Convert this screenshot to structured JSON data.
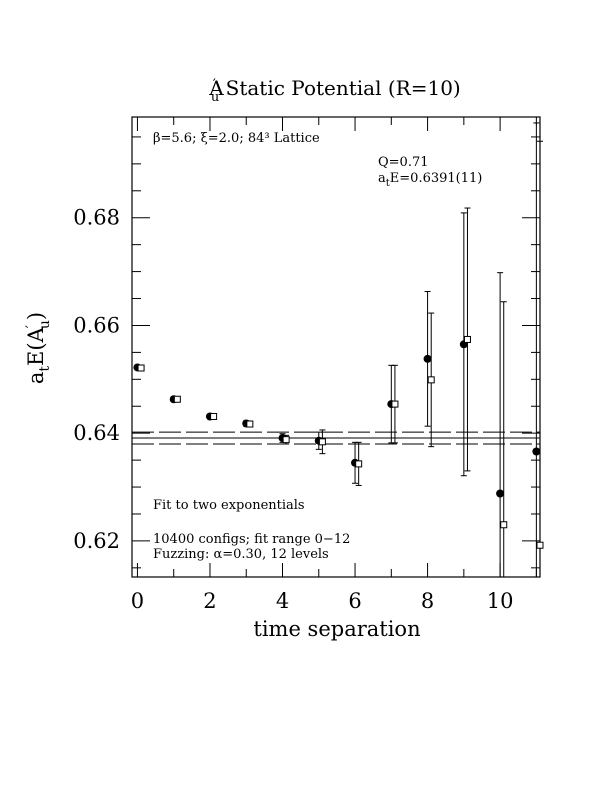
{
  "chart_data": {
    "type": "scatter",
    "title": "A′u Static Potential (R=10)",
    "xlabel": "time separation",
    "ylabel": "atE(A′u)",
    "xlim": [
      -0.15,
      11.1
    ],
    "ylim": [
      0.6133,
      0.6987
    ],
    "x_ticks": [
      0,
      2,
      4,
      6,
      8,
      10
    ],
    "y_ticks": [
      0.62,
      0.64,
      0.66,
      0.68
    ],
    "x_tick_labels": [
      "0",
      "2",
      "4",
      "6",
      "8",
      "10"
    ],
    "y_tick_labels": [
      "0.62",
      "0.64",
      "0.66",
      "0.68"
    ],
    "grid": false,
    "series": [
      {
        "marker": "filled-circle",
        "points": [
          {
            "x": 0,
            "y": 0.6522,
            "err": 0.0003
          },
          {
            "x": 1,
            "y": 0.6463,
            "err": 0.0004
          },
          {
            "x": 2,
            "y": 0.6431,
            "err": 0.0004
          },
          {
            "x": 3,
            "y": 0.6418,
            "err": 0.0005
          },
          {
            "x": 4,
            "y": 0.6391,
            "err": 0.0008
          },
          {
            "x": 5,
            "y": 0.6386,
            "err": 0.0016
          },
          {
            "x": 6,
            "y": 0.6345,
            "err": 0.0038
          },
          {
            "x": 7,
            "y": 0.6454,
            "err": 0.0072
          },
          {
            "x": 8,
            "y": 0.6538,
            "err": 0.0125
          },
          {
            "x": 9,
            "y": 0.6565,
            "err": 0.0244
          },
          {
            "x": 10,
            "y": 0.6288,
            "err": 0.041
          },
          {
            "x": 11,
            "y": 0.6366,
            "err": 0.061
          }
        ]
      },
      {
        "marker": "open-square",
        "points": [
          {
            "x": 0.1,
            "y": 0.6521,
            "err": 0.0003
          },
          {
            "x": 1.1,
            "y": 0.6463,
            "err": 0.0004
          },
          {
            "x": 2.1,
            "y": 0.6431,
            "err": 0.0004
          },
          {
            "x": 3.1,
            "y": 0.6417,
            "err": 0.0005
          },
          {
            "x": 4.1,
            "y": 0.6388,
            "err": 0.0008
          },
          {
            "x": 5.1,
            "y": 0.6384,
            "err": 0.0022
          },
          {
            "x": 6.1,
            "y": 0.6343,
            "err": 0.004
          },
          {
            "x": 7.1,
            "y": 0.6454,
            "err": 0.0072
          },
          {
            "x": 8.1,
            "y": 0.6499,
            "err": 0.0124
          },
          {
            "x": 9.1,
            "y": 0.6574,
            "err": 0.0244
          },
          {
            "x": 10.1,
            "y": 0.623,
            "err": 0.0414
          },
          {
            "x": 11.1,
            "y": 0.6192,
            "err": 0.075
          }
        ]
      }
    ],
    "fit_band": {
      "center": 0.6391,
      "error": 0.0011
    },
    "annotations": {
      "lattice": "β=5.6; ξ=2.0; 84³ Lattice",
      "q_value": "Q=0.71",
      "fit_energy": "atE=0.6391(11)",
      "fit_method": "Fit to two exponentials",
      "configs": "10400 configs; fit range 0−12",
      "fuzzing": "Fuzzing: α=0.30, 12 levels"
    }
  }
}
